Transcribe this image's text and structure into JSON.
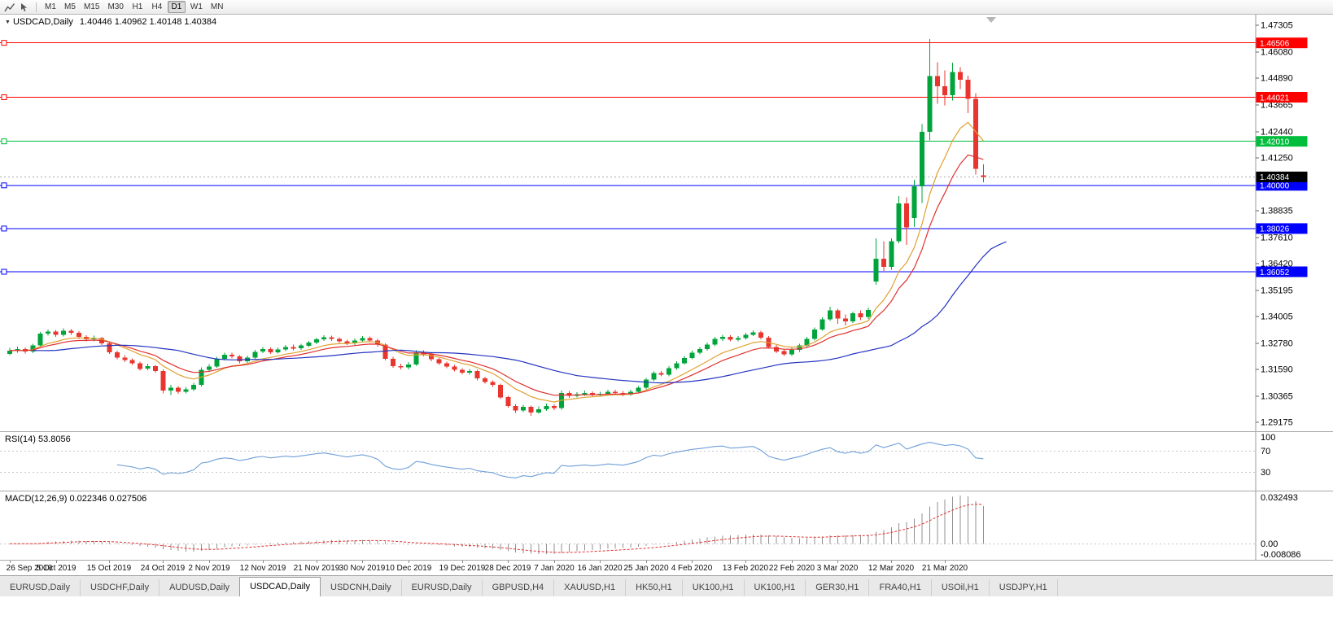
{
  "toolbar": {
    "timeframes": [
      "M1",
      "M5",
      "M15",
      "M30",
      "H1",
      "H4",
      "D1",
      "W1",
      "MN"
    ],
    "active_timeframe": "D1",
    "icons": [
      "chart-icon",
      "cursor-icon"
    ]
  },
  "chart": {
    "symbol_label": "USDCAD,Daily",
    "ohlc_text": "1.40446 1.40962 1.40148 1.40384",
    "collapse_glyph": "▼"
  },
  "indicators": {
    "rsi_label": "RSI(14) 53.8056",
    "macd_label": "MACD(12,26,9) 0.022346 0.027506"
  },
  "tabs": {
    "items": [
      "EURUSD,Daily",
      "USDCHF,Daily",
      "AUDUSD,Daily",
      "USDCAD,Daily",
      "USDCNH,Daily",
      "EURUSD,Daily",
      "GBPUSD,H4",
      "XAUUSD,H1",
      "HK50,H1",
      "UK100,H1",
      "UK100,H1",
      "GER30,H1",
      "FRA40,H1",
      "USOil,H1",
      "USDJPY,H1"
    ],
    "active_index": 3
  },
  "chart_data": {
    "type": "candlestick",
    "symbol": "USDCAD",
    "timeframe": "Daily",
    "colors": {
      "up": "#00A43B",
      "down": "#E8352E",
      "ma_fast": "#E0A030",
      "ma_mid": "#E03131",
      "ma_slow": "#2433C0",
      "rsi": "#6F9FD8",
      "macd_hist": "#909090",
      "macd_signal": "#E03131"
    },
    "price_axis": {
      "min": 1.2888,
      "max": 1.4772,
      "ticks": [
        "1.47305",
        "1.46080",
        "1.44890",
        "1.43665",
        "1.42440",
        "1.41250",
        "1.38835",
        "1.37610",
        "1.36420",
        "1.35195",
        "1.34005",
        "1.32780",
        "1.31590",
        "1.30365",
        "1.29175"
      ]
    },
    "current_price": {
      "value": 1.40384,
      "label": "1.40384",
      "color": "#000000"
    },
    "hlines": [
      {
        "price": 1.46506,
        "label": "1.46506",
        "color": "#FF0000"
      },
      {
        "price": 1.44021,
        "label": "1.44021",
        "color": "#FF0000"
      },
      {
        "price": 1.4201,
        "label": "1.42010",
        "color": "#00BE3C"
      },
      {
        "price": 1.4,
        "label": "1.40000",
        "color": "#0000FF"
      },
      {
        "price": 1.38026,
        "label": "1.38026",
        "color": "#0000FF"
      },
      {
        "price": 1.36052,
        "label": "1.36052",
        "color": "#0000FF"
      }
    ],
    "moving_averages": [
      {
        "name": "fast",
        "period": 9,
        "color": "#E0A030",
        "shift": 0
      },
      {
        "name": "mid",
        "period": 14,
        "color": "#E03131",
        "shift": 0
      },
      {
        "name": "slow",
        "period": 40,
        "color": "#2433C0",
        "shift": 3
      }
    ],
    "rsi": {
      "period": 14,
      "value": 53.8056,
      "scale_labels": [
        "100",
        "70",
        "30"
      ],
      "levels": [
        70,
        30
      ]
    },
    "macd": {
      "fast": 12,
      "slow": 26,
      "signal": 9,
      "value_main": 0.022346,
      "value_signal": 0.027506,
      "axis_labels": [
        "0.032493",
        "0.00",
        "-0.008086"
      ]
    },
    "date_labels": [
      {
        "label": "26 Sep 2019",
        "bar": 0
      },
      {
        "label": "5 Oct 2019",
        "bar": 6
      },
      {
        "label": "15 Oct 2019",
        "bar": 13
      },
      {
        "label": "24 Oct 2019",
        "bar": 20
      },
      {
        "label": "2 Nov 2019",
        "bar": 26
      },
      {
        "label": "12 Nov 2019",
        "bar": 33
      },
      {
        "label": "21 Nov 2019",
        "bar": 40
      },
      {
        "label": "30 Nov 2019",
        "bar": 46
      },
      {
        "label": "10 Dec 2019",
        "bar": 52
      },
      {
        "label": "19 Dec 2019",
        "bar": 59
      },
      {
        "label": "28 Dec 2019",
        "bar": 65
      },
      {
        "label": "7 Jan 2020",
        "bar": 71
      },
      {
        "label": "16 Jan 2020",
        "bar": 77
      },
      {
        "label": "25 Jan 2020",
        "bar": 83
      },
      {
        "label": "4 Feb 2020",
        "bar": 89
      },
      {
        "label": "13 Feb 2020",
        "bar": 96
      },
      {
        "label": "22 Feb 2020",
        "bar": 102
      },
      {
        "label": "3 Mar 2020",
        "bar": 108
      },
      {
        "label": "12 Mar 2020",
        "bar": 115
      },
      {
        "label": "21 Mar 2020",
        "bar": 122
      }
    ],
    "candles": [
      [
        1.323,
        1.3258,
        1.3225,
        1.3245
      ],
      [
        1.3245,
        1.3264,
        1.3236,
        1.3252
      ],
      [
        1.3252,
        1.326,
        1.3231,
        1.324
      ],
      [
        1.324,
        1.3276,
        1.3234,
        1.3268
      ],
      [
        1.3268,
        1.333,
        1.3262,
        1.3322
      ],
      [
        1.3322,
        1.3342,
        1.3314,
        1.3332
      ],
      [
        1.3332,
        1.334,
        1.3308,
        1.3318
      ],
      [
        1.3318,
        1.3347,
        1.331,
        1.3335
      ],
      [
        1.3335,
        1.3344,
        1.3317,
        1.3326
      ],
      [
        1.3326,
        1.3333,
        1.3299,
        1.3308
      ],
      [
        1.3308,
        1.3315,
        1.3287,
        1.3296
      ],
      [
        1.3296,
        1.3313,
        1.3288,
        1.3302
      ],
      [
        1.3302,
        1.3308,
        1.327,
        1.3278
      ],
      [
        1.3278,
        1.3284,
        1.323,
        1.3238
      ],
      [
        1.3238,
        1.3245,
        1.3206,
        1.3214
      ],
      [
        1.3214,
        1.3224,
        1.3193,
        1.3202
      ],
      [
        1.3202,
        1.321,
        1.318,
        1.3188
      ],
      [
        1.3188,
        1.3195,
        1.3154,
        1.3162
      ],
      [
        1.3162,
        1.3185,
        1.3155,
        1.3174
      ],
      [
        1.3174,
        1.318,
        1.3144,
        1.3152
      ],
      [
        1.3152,
        1.316,
        1.305,
        1.3062
      ],
      [
        1.3062,
        1.3088,
        1.3042,
        1.3075
      ],
      [
        1.3075,
        1.3084,
        1.3048,
        1.3058
      ],
      [
        1.3058,
        1.3079,
        1.305,
        1.3068
      ],
      [
        1.3068,
        1.3098,
        1.306,
        1.3088
      ],
      [
        1.3088,
        1.3168,
        1.3082,
        1.3158
      ],
      [
        1.3158,
        1.3184,
        1.315,
        1.3172
      ],
      [
        1.3172,
        1.3216,
        1.3166,
        1.3208
      ],
      [
        1.3208,
        1.3236,
        1.32,
        1.3226
      ],
      [
        1.3226,
        1.3235,
        1.3209,
        1.3218
      ],
      [
        1.3218,
        1.3224,
        1.3188,
        1.3196
      ],
      [
        1.3196,
        1.3223,
        1.3189,
        1.3214
      ],
      [
        1.3214,
        1.3248,
        1.3208,
        1.324
      ],
      [
        1.324,
        1.3262,
        1.3233,
        1.3252
      ],
      [
        1.3252,
        1.3259,
        1.323,
        1.3238
      ],
      [
        1.3238,
        1.326,
        1.3231,
        1.325
      ],
      [
        1.325,
        1.3271,
        1.3243,
        1.3262
      ],
      [
        1.3262,
        1.3272,
        1.3247,
        1.3255
      ],
      [
        1.3255,
        1.3277,
        1.3248,
        1.3268
      ],
      [
        1.3268,
        1.329,
        1.3261,
        1.3282
      ],
      [
        1.3282,
        1.3305,
        1.3275,
        1.3296
      ],
      [
        1.3296,
        1.3316,
        1.3289,
        1.3306
      ],
      [
        1.3306,
        1.3314,
        1.329,
        1.3298
      ],
      [
        1.3298,
        1.3306,
        1.328,
        1.3288
      ],
      [
        1.3288,
        1.3295,
        1.327,
        1.3278
      ],
      [
        1.3278,
        1.3301,
        1.3271,
        1.3292
      ],
      [
        1.3292,
        1.3312,
        1.3285,
        1.3302
      ],
      [
        1.3302,
        1.3309,
        1.3284,
        1.3292
      ],
      [
        1.3292,
        1.3299,
        1.3264,
        1.3272
      ],
      [
        1.3272,
        1.3278,
        1.32,
        1.3208
      ],
      [
        1.3208,
        1.3216,
        1.3167,
        1.3175
      ],
      [
        1.3175,
        1.3186,
        1.3159,
        1.3168
      ],
      [
        1.3168,
        1.3192,
        1.316,
        1.3182
      ],
      [
        1.3182,
        1.3246,
        1.3176,
        1.3238
      ],
      [
        1.3238,
        1.3247,
        1.3219,
        1.3228
      ],
      [
        1.3228,
        1.3235,
        1.3197,
        1.3205
      ],
      [
        1.3205,
        1.3212,
        1.318,
        1.3188
      ],
      [
        1.3188,
        1.3195,
        1.3164,
        1.3172
      ],
      [
        1.3172,
        1.318,
        1.315,
        1.3158
      ],
      [
        1.3158,
        1.3165,
        1.3137,
        1.3145
      ],
      [
        1.3145,
        1.3162,
        1.3136,
        1.3152
      ],
      [
        1.3152,
        1.3158,
        1.311,
        1.3118
      ],
      [
        1.3118,
        1.3126,
        1.3094,
        1.3102
      ],
      [
        1.3102,
        1.311,
        1.308,
        1.3088
      ],
      [
        1.3088,
        1.3094,
        1.3024,
        1.3032
      ],
      [
        1.3032,
        1.3038,
        1.2984,
        1.2992
      ],
      [
        1.2992,
        1.3,
        1.296,
        1.2972
      ],
      [
        1.2972,
        1.2998,
        1.2964,
        1.2988
      ],
      [
        1.2988,
        1.2994,
        1.2948,
        1.2962
      ],
      [
        1.2962,
        1.299,
        1.2956,
        1.2978
      ],
      [
        1.2978,
        1.3004,
        1.297,
        1.2992
      ],
      [
        1.2992,
        1.3,
        1.2974,
        1.2982
      ],
      [
        1.2982,
        1.3062,
        1.2976,
        1.3052
      ],
      [
        1.3052,
        1.306,
        1.303,
        1.3038
      ],
      [
        1.3038,
        1.3056,
        1.3031,
        1.3045
      ],
      [
        1.3045,
        1.3062,
        1.3038,
        1.3052
      ],
      [
        1.3052,
        1.3059,
        1.3034,
        1.3042
      ],
      [
        1.3042,
        1.3058,
        1.3035,
        1.3048
      ],
      [
        1.3048,
        1.3067,
        1.304,
        1.3058
      ],
      [
        1.3058,
        1.3066,
        1.3044,
        1.3052
      ],
      [
        1.3052,
        1.306,
        1.3037,
        1.3045
      ],
      [
        1.3045,
        1.3067,
        1.3038,
        1.3058
      ],
      [
        1.3058,
        1.3084,
        1.305,
        1.3075
      ],
      [
        1.3075,
        1.312,
        1.3069,
        1.3112
      ],
      [
        1.3112,
        1.315,
        1.3105,
        1.3142
      ],
      [
        1.3142,
        1.3152,
        1.3127,
        1.3135
      ],
      [
        1.3135,
        1.3174,
        1.3128,
        1.3165
      ],
      [
        1.3165,
        1.3197,
        1.3158,
        1.3188
      ],
      [
        1.3188,
        1.3221,
        1.3181,
        1.3212
      ],
      [
        1.3212,
        1.3244,
        1.3205,
        1.3235
      ],
      [
        1.3235,
        1.3261,
        1.3228,
        1.3252
      ],
      [
        1.3252,
        1.3281,
        1.3245,
        1.3272
      ],
      [
        1.3272,
        1.3307,
        1.3265,
        1.3298
      ],
      [
        1.3298,
        1.3318,
        1.329,
        1.3308
      ],
      [
        1.3308,
        1.3316,
        1.3287,
        1.3295
      ],
      [
        1.3295,
        1.3312,
        1.3288,
        1.3302
      ],
      [
        1.3302,
        1.3327,
        1.3295,
        1.3318
      ],
      [
        1.3318,
        1.3338,
        1.3311,
        1.3328
      ],
      [
        1.3328,
        1.3335,
        1.3297,
        1.3305
      ],
      [
        1.3305,
        1.3311,
        1.3254,
        1.3262
      ],
      [
        1.3262,
        1.327,
        1.3234,
        1.3242
      ],
      [
        1.3242,
        1.325,
        1.322,
        1.3228
      ],
      [
        1.3228,
        1.3257,
        1.3221,
        1.3248
      ],
      [
        1.3248,
        1.3277,
        1.324,
        1.3268
      ],
      [
        1.3268,
        1.3307,
        1.3261,
        1.3298
      ],
      [
        1.3298,
        1.3351,
        1.3291,
        1.3342
      ],
      [
        1.3342,
        1.3397,
        1.3335,
        1.3388
      ],
      [
        1.3388,
        1.3445,
        1.3381,
        1.3428
      ],
      [
        1.3428,
        1.3436,
        1.3368,
        1.3392
      ],
      [
        1.3392,
        1.341,
        1.3359,
        1.3378
      ],
      [
        1.3378,
        1.3424,
        1.3371,
        1.3415
      ],
      [
        1.3415,
        1.3428,
        1.3385,
        1.3398
      ],
      [
        1.3398,
        1.3442,
        1.339,
        1.343
      ],
      [
        1.356,
        1.3758,
        1.3545,
        1.3665
      ],
      [
        1.3665,
        1.3745,
        1.3608,
        1.3628
      ],
      [
        1.3628,
        1.3758,
        1.3615,
        1.3745
      ],
      [
        1.3745,
        1.395,
        1.3735,
        1.3918
      ],
      [
        1.3918,
        1.3945,
        1.3728,
        1.3808
      ],
      [
        1.385,
        1.4025,
        1.381,
        1.3995
      ],
      [
        1.3995,
        1.428,
        1.392,
        1.4245
      ],
      [
        1.4245,
        1.4668,
        1.4205,
        1.4498
      ],
      [
        1.4498,
        1.4562,
        1.4372,
        1.4452
      ],
      [
        1.4452,
        1.4525,
        1.4365,
        1.4412
      ],
      [
        1.4412,
        1.456,
        1.4388,
        1.4518
      ],
      [
        1.4518,
        1.454,
        1.444,
        1.4482
      ],
      [
        1.4482,
        1.45,
        1.433,
        1.4395
      ],
      [
        1.4395,
        1.442,
        1.405,
        1.4075
      ],
      [
        1.40446,
        1.40962,
        1.40148,
        1.40384
      ]
    ]
  }
}
